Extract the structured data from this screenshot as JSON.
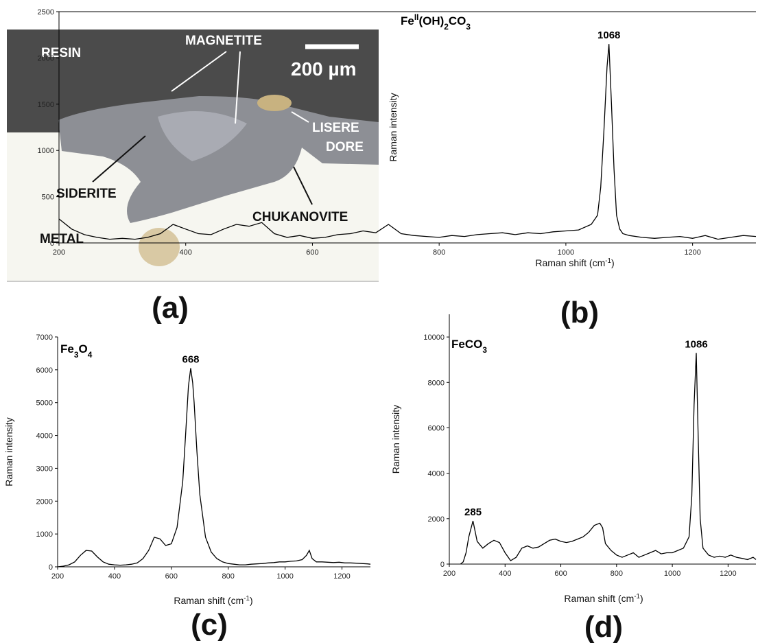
{
  "figure": {
    "panel_labels": [
      "(a)",
      "(b)",
      "(c)",
      "(d)"
    ],
    "micrograph": {
      "labels": [
        "RESIN",
        "MAGNETITE",
        "200 µm",
        "LISERE",
        "DORE",
        "SIDERITE",
        "CHUKANOVITE",
        "METAL"
      ]
    }
  },
  "chart_data": [
    {
      "type": "line",
      "color": "#000000",
      "title_parts": [
        {
          "text": "Fe"
        },
        {
          "text": "II",
          "script": "sup"
        },
        {
          "text": "(OH)"
        },
        {
          "text": "2",
          "script": "sub"
        },
        {
          "text": "CO"
        },
        {
          "text": "3",
          "script": "sub"
        }
      ],
      "xlabel_parts": [
        {
          "text": "Raman shift (cm"
        },
        {
          "text": "-1",
          "script": "sup"
        },
        {
          "text": ")"
        }
      ],
      "ylabel": "Raman intensity",
      "top_axis": true,
      "xlim": [
        200,
        1300
      ],
      "ylim": [
        0,
        2500
      ],
      "xticks": [
        200,
        400,
        600,
        800,
        1000,
        1200
      ],
      "yticks": [
        0,
        500,
        1000,
        1500,
        2000,
        2500
      ],
      "annotations": [
        {
          "text": "1068",
          "x": 1068
        }
      ],
      "x": [
        200,
        220,
        240,
        260,
        280,
        300,
        320,
        340,
        360,
        380,
        400,
        420,
        440,
        460,
        480,
        500,
        520,
        540,
        560,
        580,
        600,
        620,
        640,
        660,
        680,
        700,
        720,
        740,
        760,
        780,
        800,
        820,
        840,
        860,
        880,
        900,
        920,
        940,
        960,
        980,
        1000,
        1020,
        1040,
        1050,
        1055,
        1060,
        1065,
        1068,
        1072,
        1076,
        1080,
        1085,
        1090,
        1100,
        1120,
        1140,
        1160,
        1180,
        1200,
        1220,
        1240,
        1260,
        1280,
        1300
      ],
      "values": [
        260,
        150,
        90,
        60,
        40,
        50,
        40,
        60,
        100,
        200,
        150,
        100,
        90,
        150,
        200,
        180,
        220,
        100,
        60,
        80,
        50,
        60,
        90,
        100,
        130,
        110,
        200,
        100,
        80,
        70,
        60,
        80,
        70,
        90,
        100,
        110,
        90,
        110,
        100,
        120,
        130,
        140,
        200,
        300,
        600,
        1200,
        1900,
        2150,
        1500,
        800,
        300,
        150,
        100,
        80,
        60,
        50,
        60,
        70,
        50,
        80,
        40,
        60,
        80,
        70
      ]
    },
    {
      "type": "line",
      "color": "#000000",
      "title_parts": [
        {
          "text": "Fe"
        },
        {
          "text": "3",
          "script": "sub"
        },
        {
          "text": "O"
        },
        {
          "text": "4",
          "script": "sub"
        }
      ],
      "xlabel_parts": [
        {
          "text": "Raman shift (cm"
        },
        {
          "text": "-1",
          "script": "sup"
        },
        {
          "text": ")"
        }
      ],
      "ylabel": "Raman intensity",
      "top_axis": false,
      "xlim": [
        200,
        1300
      ],
      "ylim": [
        0,
        7000
      ],
      "xticks": [
        200,
        400,
        600,
        800,
        1000,
        1200
      ],
      "yticks": [
        0,
        1000,
        2000,
        3000,
        4000,
        5000,
        6000,
        7000
      ],
      "annotations": [
        {
          "text": "668",
          "x": 668
        }
      ],
      "x": [
        200,
        220,
        240,
        260,
        280,
        300,
        320,
        340,
        360,
        380,
        400,
        420,
        440,
        460,
        480,
        500,
        520,
        540,
        560,
        580,
        600,
        620,
        640,
        650,
        660,
        668,
        675,
        680,
        690,
        700,
        720,
        740,
        760,
        780,
        800,
        820,
        840,
        860,
        880,
        900,
        920,
        940,
        960,
        980,
        1000,
        1020,
        1040,
        1060,
        1075,
        1085,
        1095,
        1110,
        1130,
        1150,
        1170,
        1190,
        1210,
        1230,
        1250,
        1270,
        1290,
        1300
      ],
      "values": [
        0,
        20,
        60,
        150,
        350,
        500,
        480,
        300,
        150,
        80,
        60,
        50,
        60,
        80,
        120,
        250,
        500,
        900,
        850,
        650,
        700,
        1200,
        2600,
        4000,
        5500,
        6050,
        5600,
        5000,
        3500,
        2200,
        900,
        450,
        250,
        150,
        100,
        80,
        60,
        60,
        80,
        90,
        100,
        120,
        130,
        150,
        150,
        170,
        180,
        220,
        350,
        500,
        250,
        150,
        150,
        140,
        130,
        140,
        120,
        120,
        110,
        100,
        90,
        80
      ]
    },
    {
      "type": "line",
      "color": "#000000",
      "title_parts": [
        {
          "text": "FeCO"
        },
        {
          "text": "3",
          "script": "sub"
        }
      ],
      "xlabel_parts": [
        {
          "text": "Raman shift (cm"
        },
        {
          "text": "-1",
          "script": "sup"
        },
        {
          "text": ")"
        }
      ],
      "ylabel": "Raman intensity",
      "top_axis": false,
      "xlim": [
        200,
        1300
      ],
      "ylim": [
        0,
        11000
      ],
      "xticks": [
        200,
        400,
        600,
        800,
        1000,
        1200
      ],
      "yticks": [
        0,
        2000,
        4000,
        6000,
        8000,
        10000
      ],
      "annotations": [
        {
          "text": "285",
          "x": 285
        },
        {
          "text": "1086",
          "x": 1086
        }
      ],
      "x": [
        240,
        250,
        260,
        270,
        285,
        300,
        320,
        340,
        360,
        380,
        400,
        420,
        440,
        460,
        480,
        500,
        520,
        540,
        560,
        580,
        600,
        620,
        640,
        660,
        680,
        700,
        720,
        740,
        750,
        760,
        780,
        800,
        820,
        840,
        860,
        880,
        900,
        920,
        940,
        960,
        980,
        1000,
        1020,
        1040,
        1060,
        1070,
        1078,
        1086,
        1092,
        1100,
        1110,
        1130,
        1150,
        1170,
        1190,
        1210,
        1230,
        1250,
        1270,
        1290,
        1300
      ],
      "values": [
        0,
        100,
        500,
        1200,
        1900,
        1000,
        700,
        900,
        1050,
        950,
        500,
        150,
        300,
        700,
        800,
        700,
        750,
        900,
        1050,
        1100,
        1000,
        950,
        1000,
        1100,
        1200,
        1400,
        1700,
        1800,
        1600,
        900,
        600,
        400,
        300,
        400,
        500,
        300,
        400,
        500,
        600,
        450,
        500,
        500,
        600,
        700,
        1200,
        3000,
        7000,
        9300,
        6000,
        2000,
        700,
        400,
        300,
        350,
        300,
        400,
        300,
        250,
        200,
        300,
        200
      ]
    }
  ]
}
